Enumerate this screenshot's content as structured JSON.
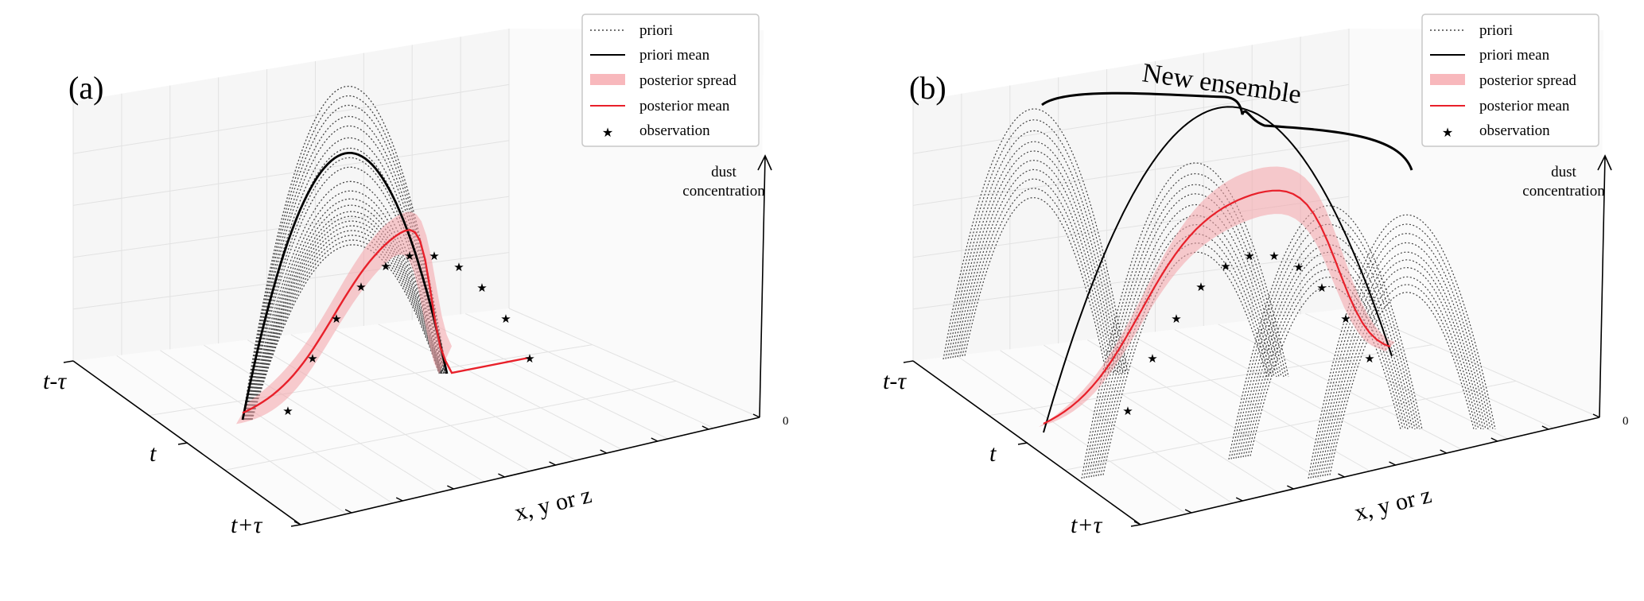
{
  "panels": [
    {
      "label": "(a)",
      "legend": [
        {
          "label": "priori",
          "style": "dotted"
        },
        {
          "label": "priori mean",
          "style": "solid-black"
        },
        {
          "label": "posterior spread",
          "style": "band"
        },
        {
          "label": "posterior mean",
          "style": "solid-red"
        },
        {
          "label": "observation",
          "style": "star"
        }
      ],
      "z_axis_label": [
        "dust",
        "concentration"
      ],
      "z_zero": "0",
      "x_axis_label": "x, y or z",
      "time_labels": [
        "t-τ",
        "t",
        "t+τ"
      ]
    },
    {
      "label": "(b)",
      "annotation": "New ensemble",
      "legend": [
        {
          "label": "priori",
          "style": "dotted"
        },
        {
          "label": "priori mean",
          "style": "solid-black"
        },
        {
          "label": "posterior spread",
          "style": "band"
        },
        {
          "label": "posterior mean",
          "style": "solid-red"
        },
        {
          "label": "observation",
          "style": "star"
        }
      ],
      "z_axis_label": [
        "dust",
        "concentration"
      ],
      "z_zero": "0",
      "x_axis_label": "x, y or z",
      "time_labels": [
        "t-τ",
        "t",
        "t+τ"
      ]
    }
  ],
  "colors": {
    "priori": "#444444",
    "priori_mean": "#000000",
    "posterior_spread": "#f4a3a8",
    "posterior_mean": "#e8202a",
    "observation": "#1e22c8",
    "grid": "#e2e2e2",
    "pane": "#f6f6f6"
  }
}
